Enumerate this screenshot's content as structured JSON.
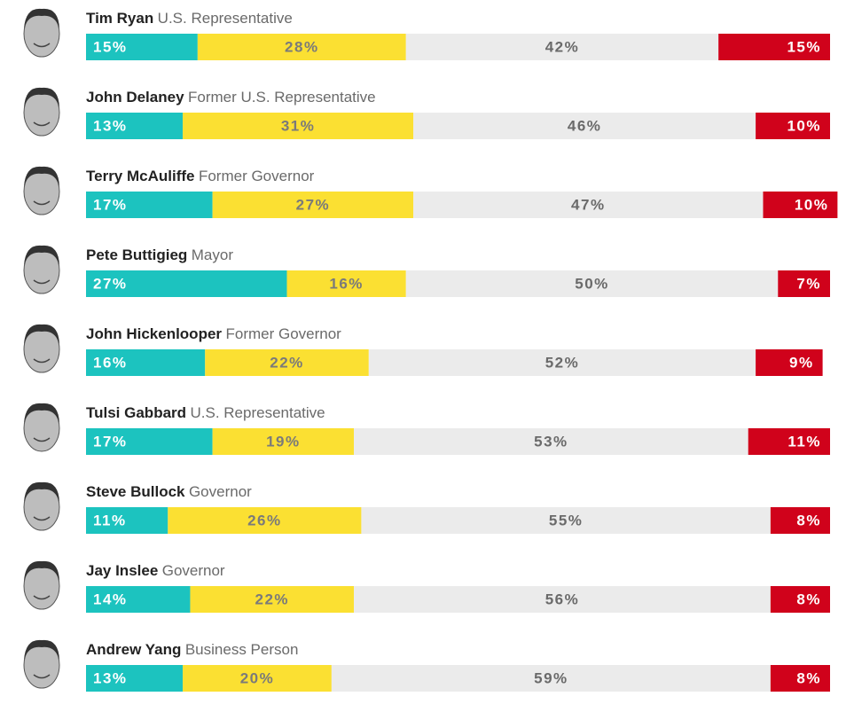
{
  "chart_data": {
    "type": "stacked-bar",
    "categories": [
      "Tim Ryan",
      "John Delaney",
      "Terry McAuliffe",
      "Pete Buttigieg",
      "John Hickenlooper",
      "Tulsi Gabbard",
      "Steve Bullock",
      "Jay Inslee",
      "Andrew Yang"
    ],
    "descriptions": [
      "U.S. Representative",
      "Former U.S. Representative",
      "Former Governor",
      "Mayor",
      "Former Governor",
      "U.S. Representative",
      "Governor",
      "Governor",
      "Business Person"
    ],
    "series": [
      {
        "color": "#1cc3bf",
        "values": [
          15,
          13,
          17,
          27,
          16,
          17,
          11,
          14,
          13
        ],
        "value_labels": [
          "15%",
          "13%",
          "17%",
          "27%",
          "16%",
          "17%",
          "11%",
          "14%",
          "13%"
        ]
      },
      {
        "color": "#fbe032",
        "values": [
          28,
          31,
          27,
          16,
          22,
          19,
          26,
          22,
          20
        ],
        "value_labels": [
          "28%",
          "31%",
          "27%",
          "16%",
          "22%",
          "19%",
          "26%",
          "22%",
          "20%"
        ]
      },
      {
        "color": "#ebebeb",
        "values": [
          42,
          46,
          47,
          50,
          52,
          53,
          55,
          56,
          59
        ],
        "value_labels": [
          "42%",
          "46%",
          "47%",
          "50%",
          "52%",
          "53%",
          "55%",
          "56%",
          "59%"
        ]
      },
      {
        "color": "#d0021b",
        "values": [
          15,
          10,
          10,
          7,
          9,
          11,
          8,
          8,
          8
        ],
        "value_labels": [
          "15%",
          "10%",
          "10%",
          "7%",
          "9%",
          "11%",
          "8%",
          "8%",
          "8%"
        ]
      }
    ]
  }
}
